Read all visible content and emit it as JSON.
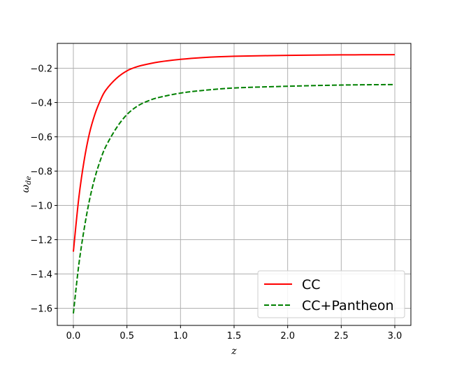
{
  "chart_data": {
    "type": "line",
    "xlabel": "z",
    "ylabel_main": "ω",
    "ylabel_sub": "de",
    "xlim": [
      -0.15,
      3.15
    ],
    "ylim": [
      -1.7,
      -0.055
    ],
    "xticks": [
      0.0,
      0.5,
      1.0,
      1.5,
      2.0,
      2.5,
      3.0
    ],
    "xtick_labels": [
      "0.0",
      "0.5",
      "1.0",
      "1.5",
      "2.0",
      "2.5",
      "3.0"
    ],
    "yticks": [
      -0.2,
      -0.4,
      -0.6,
      -0.8,
      -1.0,
      -1.2,
      -1.4,
      -1.6
    ],
    "ytick_labels": [
      "−0.2",
      "−0.4",
      "−0.6",
      "−0.8",
      "−1.0",
      "−1.2",
      "−1.4",
      "−1.6"
    ],
    "grid": true,
    "legend_position": "lower-right",
    "series": [
      {
        "name": "CC",
        "color": "#ff0000",
        "style": "solid",
        "x": [
          0.0,
          0.05,
          0.1,
          0.15,
          0.2,
          0.25,
          0.3,
          0.4,
          0.5,
          0.6,
          0.7,
          0.8,
          1.0,
          1.2,
          1.5,
          2.0,
          2.5,
          3.0
        ],
        "y": [
          -1.27,
          -0.96,
          -0.74,
          -0.58,
          -0.47,
          -0.39,
          -0.33,
          -0.26,
          -0.215,
          -0.19,
          -0.175,
          -0.163,
          -0.148,
          -0.138,
          -0.13,
          -0.125,
          -0.122,
          -0.121
        ]
      },
      {
        "name": "CC+Pantheon",
        "color": "#008000",
        "style": "dashed",
        "x": [
          0.0,
          0.05,
          0.1,
          0.15,
          0.2,
          0.25,
          0.3,
          0.4,
          0.5,
          0.6,
          0.7,
          0.8,
          1.0,
          1.2,
          1.5,
          2.0,
          2.5,
          3.0
        ],
        "y": [
          -1.63,
          -1.35,
          -1.14,
          -0.97,
          -0.84,
          -0.74,
          -0.66,
          -0.55,
          -0.47,
          -0.42,
          -0.39,
          -0.37,
          -0.345,
          -0.33,
          -0.315,
          -0.305,
          -0.298,
          -0.295
        ]
      }
    ]
  }
}
